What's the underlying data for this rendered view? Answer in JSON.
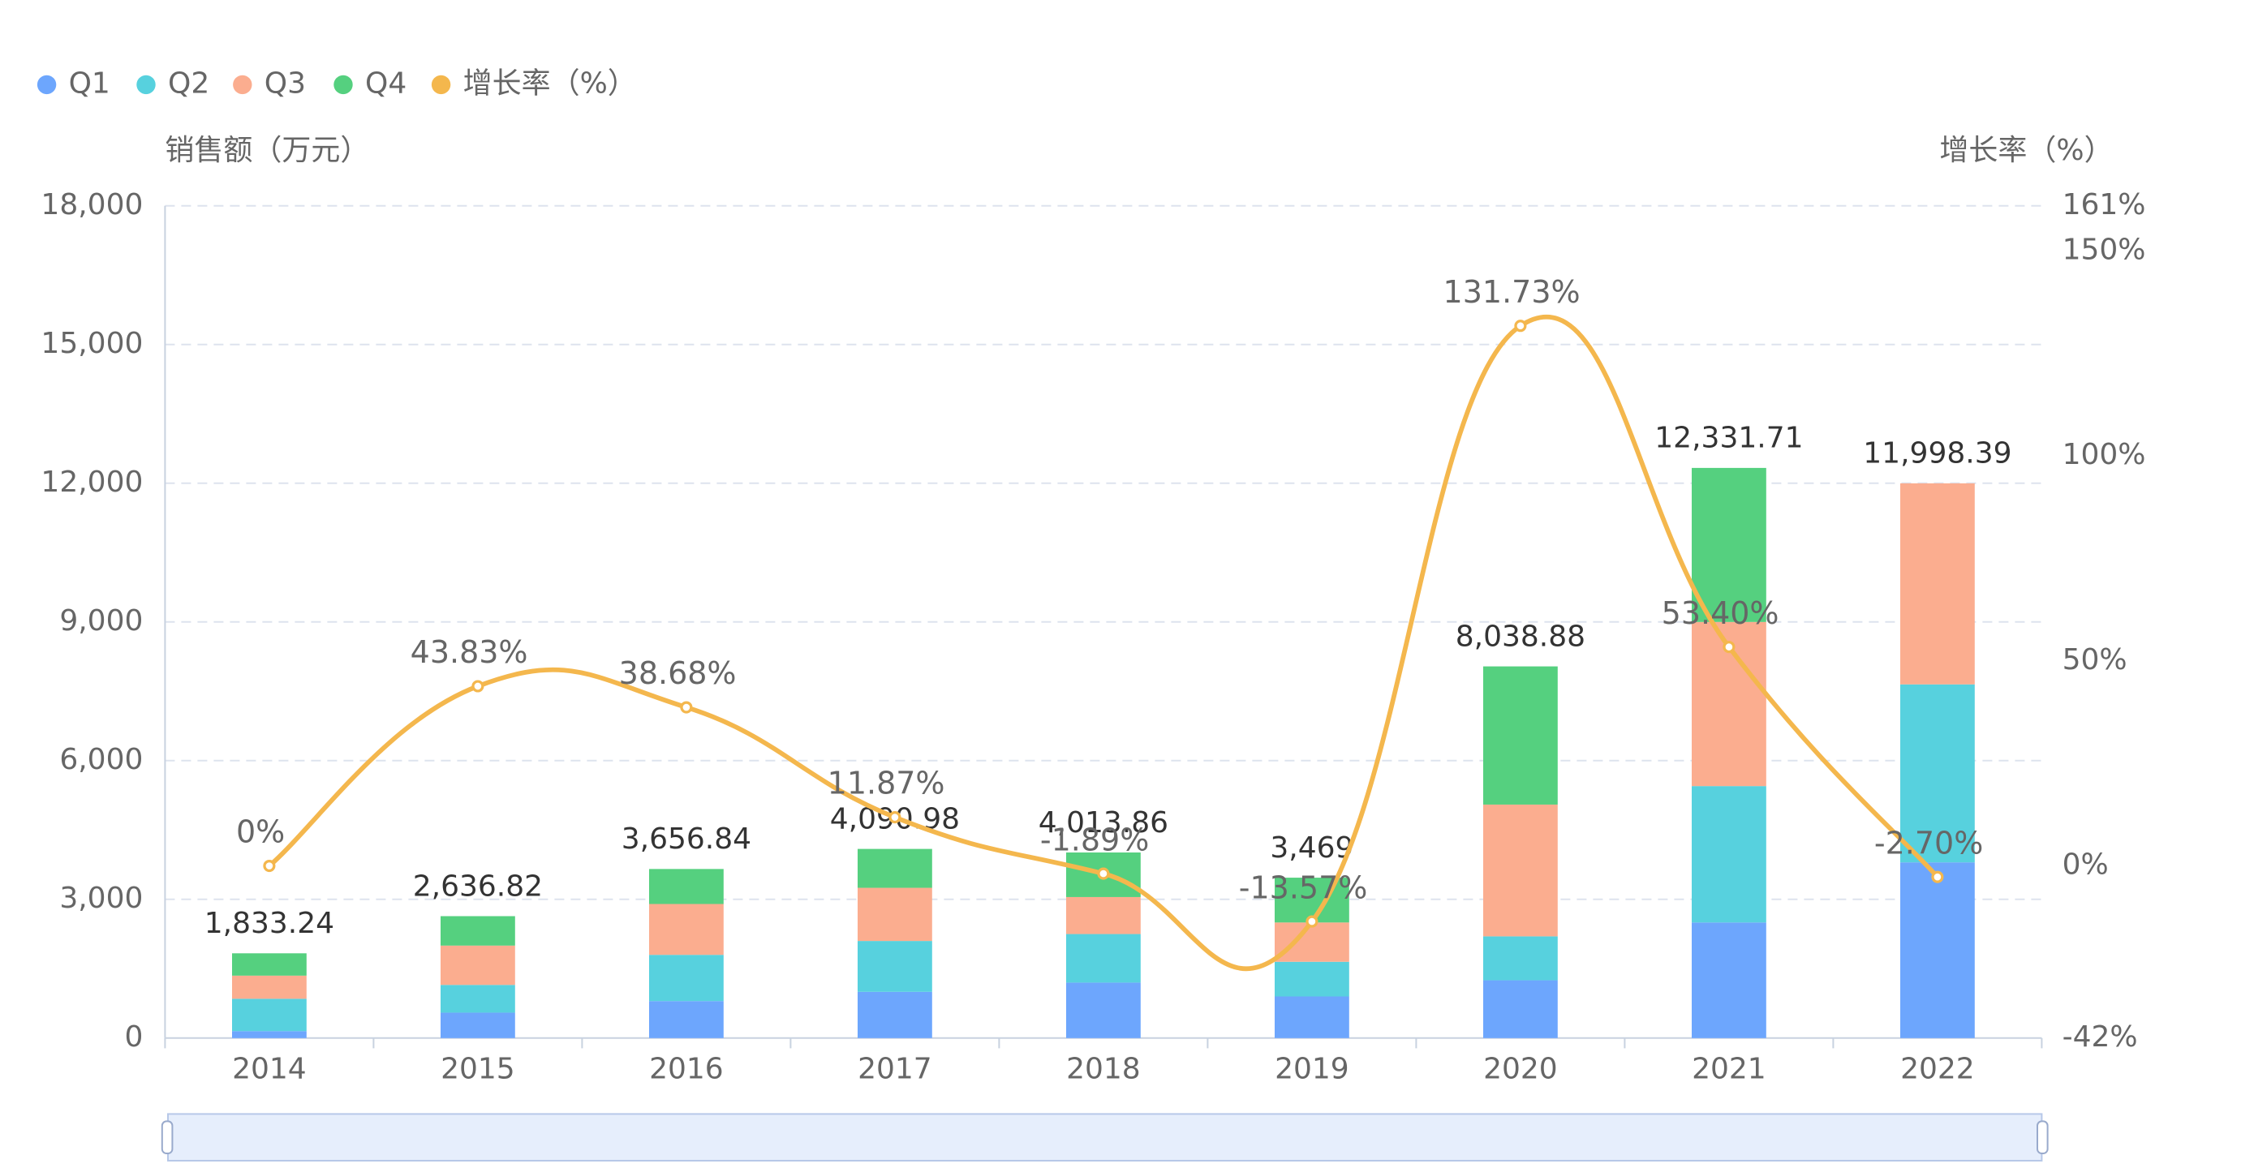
{
  "chart_data": {
    "type": "bar",
    "stacked": true,
    "categories": [
      "2014",
      "2015",
      "2016",
      "2017",
      "2018",
      "2019",
      "2020",
      "2021",
      "2022"
    ],
    "series": [
      {
        "name": "Q1",
        "values": [
          150,
          550,
          800,
          1000,
          1200,
          900,
          1250,
          2500,
          3800
        ]
      },
      {
        "name": "Q2",
        "values": [
          700,
          600,
          1000,
          1100,
          1050,
          750,
          950,
          2950,
          3850
        ]
      },
      {
        "name": "Q3",
        "values": [
          500,
          850,
          1100,
          1150,
          800,
          850,
          2850,
          3550,
          4348.39
        ]
      },
      {
        "name": "Q4",
        "values": [
          483.24,
          636.82,
          756.84,
          840.98,
          963.86,
          969,
          2988.88,
          3331.71,
          0
        ]
      }
    ],
    "totals": [
      1833.24,
      2636.82,
      3656.84,
      4090.98,
      4013.86,
      3469,
      8038.88,
      12331.71,
      11998.39
    ],
    "total_labels": [
      "1,833.24",
      "2,636.82",
      "3,656.84",
      "4,090.98",
      "4,013.86",
      "3,469",
      "8,038.88",
      "12,331.71",
      "11,998.39"
    ],
    "growth_rate": {
      "name": "增长率（%）",
      "values": [
        0,
        43.83,
        38.68,
        11.87,
        -1.89,
        -13.57,
        131.73,
        53.4,
        -2.7
      ],
      "labels": [
        "0%",
        "43.83%",
        "38.68%",
        "11.87%",
        "-1.89%",
        "-13.57%",
        "131.73%",
        "53.40%",
        "-2.70%"
      ]
    },
    "y_left": {
      "title": "销售额（万元）",
      "ylim": [
        0,
        18000
      ],
      "ticks": [
        0,
        3000,
        6000,
        9000,
        12000,
        15000,
        18000
      ],
      "tick_labels": [
        "0",
        "3,000",
        "6,000",
        "9,000",
        "12,000",
        "15,000",
        "18,000"
      ]
    },
    "y_right": {
      "title": "增长率（%）",
      "ylim": [
        -42,
        161
      ],
      "ticks": [
        -42,
        0,
        50,
        100,
        150,
        161
      ],
      "tick_labels": [
        "-42%",
        "0%",
        "50%",
        "100%",
        "150%",
        "161%"
      ]
    },
    "legend": [
      "Q1",
      "Q2",
      "Q3",
      "Q4",
      "增长率（%）"
    ],
    "legend_position": "top-left",
    "grid": true
  },
  "colors": {
    "Q1": "#6da6fd",
    "Q2": "#57d1de",
    "Q3": "#fbad8f",
    "Q4": "#55d07f",
    "rate": "#f4b74d",
    "grid": "#dde3ee",
    "axis": "#c8d2e0",
    "zoom_fill": "#e6eefc",
    "zoom_border": "#b7c8e8"
  }
}
